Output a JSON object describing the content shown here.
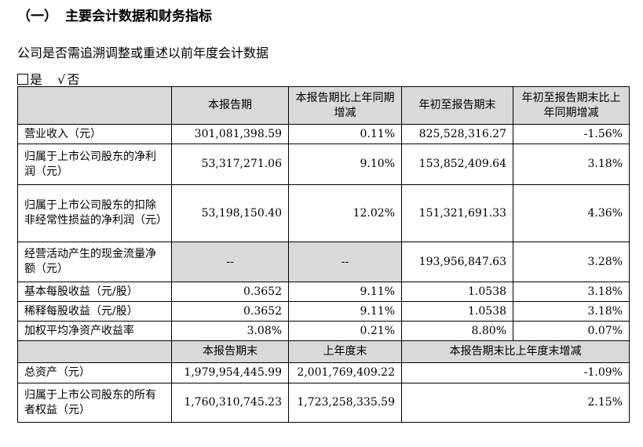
{
  "heading": {
    "number": "（一）",
    "title": "主要会计数据和财务指标"
  },
  "question": "公司是否需追溯调整或重述以前年度会计数据",
  "choices": {
    "yes_label": "是",
    "check_mark": "√",
    "no_label": "否"
  },
  "table1": {
    "headers": [
      "",
      "本报告期",
      "本报告期比上年同期增减",
      "年初至报告期末",
      "年初至报告期末比上年同期增减"
    ],
    "rows": [
      {
        "label": "营业收入（元）",
        "values": [
          "301,081,398.59",
          "0.11%",
          "825,528,316.27",
          "-1.56%"
        ]
      },
      {
        "label": "归属于上市公司股东的净利润（元）",
        "values": [
          "53,317,271.06",
          "9.10%",
          "153,852,409.64",
          "3.18%"
        ]
      },
      {
        "label": "归属于上市公司股东的扣除非经常性损益的净利润（元）",
        "values": [
          "53,198,150.40",
          "12.02%",
          "151,321,691.33",
          "4.36%"
        ]
      },
      {
        "label": "经营活动产生的现金流量净额（元）",
        "values": [
          "--",
          "--",
          "193,956,847.63",
          "3.28%"
        ]
      },
      {
        "label": "基本每股收益（元/股）",
        "values": [
          "0.3652",
          "9.11%",
          "1.0538",
          "3.18%"
        ]
      },
      {
        "label": "稀释每股收益（元/股）",
        "values": [
          "0.3652",
          "9.11%",
          "1.0538",
          "3.18%"
        ]
      },
      {
        "label": "加权平均净资产收益率",
        "values": [
          "3.08%",
          "0.21%",
          "8.80%",
          "0.07%"
        ]
      }
    ]
  },
  "table2": {
    "headers": [
      "",
      "本报告期末",
      "上年度末",
      "本报告期末比上年度末增减"
    ],
    "rows": [
      {
        "label": "总资产（元）",
        "values": [
          "1,979,954,445.99",
          "2,001,769,409.22",
          "-1.09%"
        ]
      },
      {
        "label": "归属于上市公司股东的所有者权益（元）",
        "values": [
          "1,760,310,745.23",
          "1,723,258,335.59",
          "2.15%"
        ]
      }
    ]
  }
}
